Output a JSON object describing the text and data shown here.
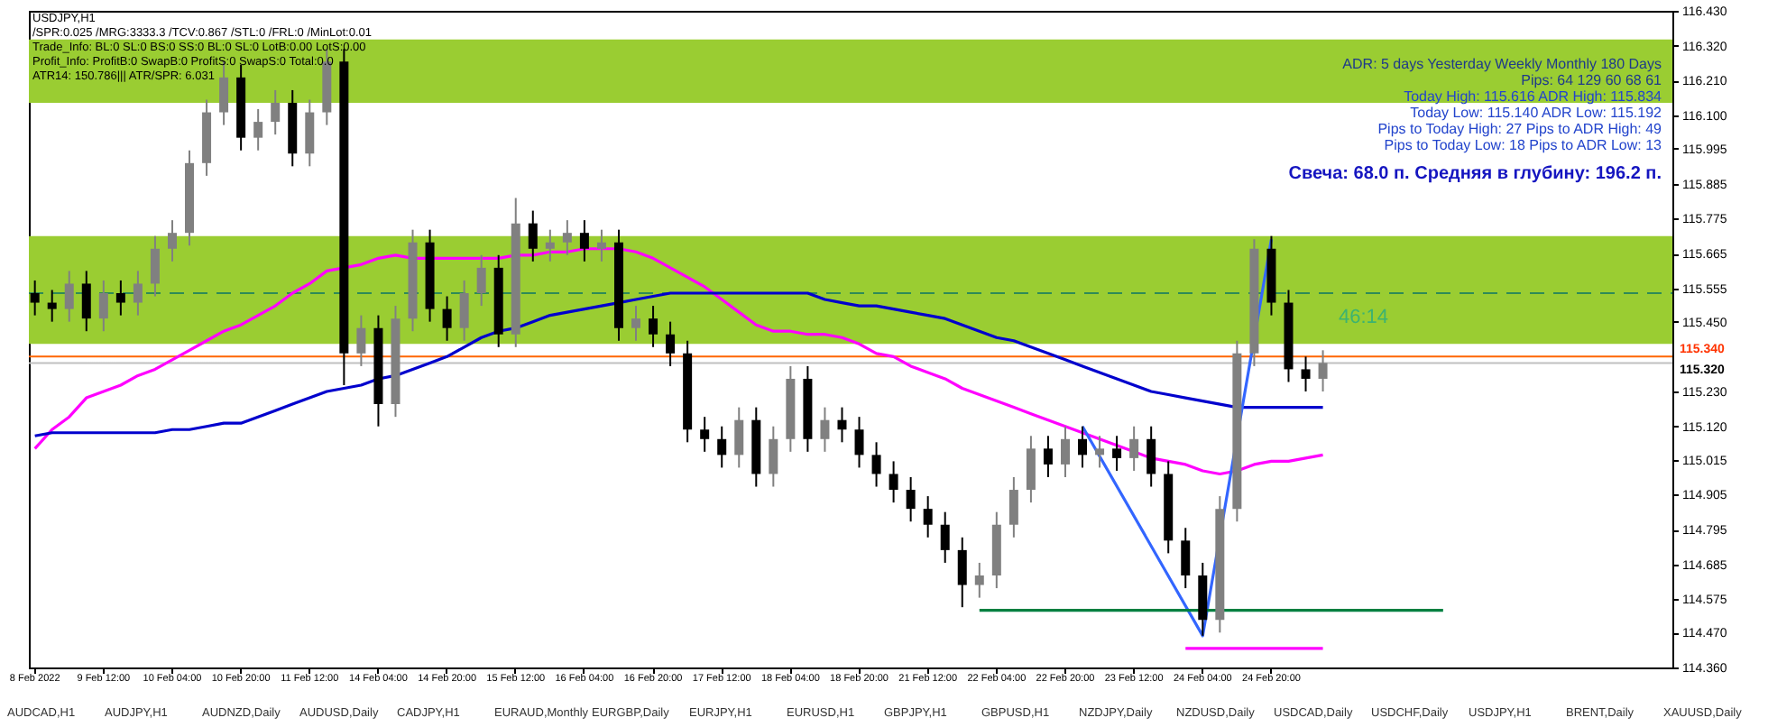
{
  "chart_data": {
    "type": "candlestick",
    "categories": [
      "8 Feb 2022",
      null,
      null,
      null,
      "9 Feb 12:00",
      null,
      null,
      null,
      "10 Feb 04:00",
      null,
      null,
      null,
      "10 Feb 20:00",
      null,
      null,
      null,
      "11 Feb 12:00",
      null,
      null,
      null,
      "14 Feb 04:00",
      null,
      null,
      null,
      "14 Feb 20:00",
      null,
      null,
      null,
      "15 Feb 12:00",
      null,
      null,
      null,
      "16 Feb 04:00",
      null,
      null,
      null,
      "16 Feb 20:00",
      null,
      null,
      null,
      "17 Feb 12:00",
      null,
      null,
      null,
      "18 Feb 04:00",
      null,
      null,
      null,
      "18 Feb 20:00",
      null,
      null,
      null,
      "21 Feb 12:00",
      null,
      null,
      null,
      "22 Feb 04:00",
      null,
      null,
      null,
      "22 Feb 20:00",
      null,
      null,
      null,
      "23 Feb 12:00",
      null,
      null,
      null,
      "24 Feb 04:00",
      null,
      null,
      null,
      "24 Feb 20:00",
      null,
      null,
      null,
      null,
      null,
      null,
      null,
      null,
      null,
      null,
      null,
      null,
      null,
      null,
      null,
      null,
      null,
      null,
      null,
      null,
      null,
      null,
      null
    ],
    "ohlc": [
      [
        115.54,
        115.58,
        115.47,
        115.51
      ],
      [
        115.51,
        115.55,
        115.45,
        115.49
      ],
      [
        115.49,
        115.61,
        115.45,
        115.57
      ],
      [
        115.57,
        115.61,
        115.42,
        115.46
      ],
      [
        115.46,
        115.58,
        115.42,
        115.54
      ],
      [
        115.54,
        115.58,
        115.47,
        115.51
      ],
      [
        115.51,
        115.61,
        115.47,
        115.57
      ],
      [
        115.57,
        115.72,
        115.53,
        115.68
      ],
      [
        115.68,
        115.77,
        115.64,
        115.73
      ],
      [
        115.73,
        115.99,
        115.69,
        115.95
      ],
      [
        115.95,
        116.15,
        115.91,
        116.11
      ],
      [
        116.11,
        116.27,
        116.07,
        116.22
      ],
      [
        116.22,
        116.26,
        115.99,
        116.03
      ],
      [
        116.03,
        116.12,
        115.99,
        116.08
      ],
      [
        116.08,
        116.18,
        116.04,
        116.14
      ],
      [
        116.14,
        116.18,
        115.94,
        115.98
      ],
      [
        115.98,
        116.15,
        115.94,
        116.11
      ],
      [
        116.11,
        116.31,
        116.07,
        116.27
      ],
      [
        116.27,
        116.31,
        115.25,
        115.35
      ],
      [
        115.35,
        115.47,
        115.31,
        115.43
      ],
      [
        115.43,
        115.47,
        115.12,
        115.19
      ],
      [
        115.19,
        115.5,
        115.15,
        115.46
      ],
      [
        115.46,
        115.74,
        115.42,
        115.7
      ],
      [
        115.7,
        115.74,
        115.45,
        115.49
      ],
      [
        115.49,
        115.53,
        115.39,
        115.43
      ],
      [
        115.43,
        115.58,
        115.39,
        115.54
      ],
      [
        115.54,
        115.66,
        115.5,
        115.62
      ],
      [
        115.62,
        115.66,
        115.37,
        115.41
      ],
      [
        115.41,
        115.84,
        115.37,
        115.76
      ],
      [
        115.76,
        115.8,
        115.64,
        115.68
      ],
      [
        115.68,
        115.74,
        115.64,
        115.7
      ],
      [
        115.7,
        115.77,
        115.66,
        115.73
      ],
      [
        115.73,
        115.77,
        115.64,
        115.68
      ],
      [
        115.68,
        115.74,
        115.64,
        115.7
      ],
      [
        115.7,
        115.74,
        115.39,
        115.43
      ],
      [
        115.43,
        115.5,
        115.39,
        115.46
      ],
      [
        115.46,
        115.5,
        115.37,
        115.41
      ],
      [
        115.41,
        115.45,
        115.31,
        115.35
      ],
      [
        115.35,
        115.39,
        115.07,
        115.11
      ],
      [
        115.11,
        115.15,
        115.04,
        115.08
      ],
      [
        115.08,
        115.12,
        114.99,
        115.03
      ],
      [
        115.03,
        115.18,
        114.99,
        115.14
      ],
      [
        115.14,
        115.18,
        114.93,
        114.97
      ],
      [
        114.97,
        115.12,
        114.93,
        115.08
      ],
      [
        115.08,
        115.31,
        115.04,
        115.27
      ],
      [
        115.27,
        115.31,
        115.04,
        115.08
      ],
      [
        115.08,
        115.18,
        115.04,
        115.14
      ],
      [
        115.14,
        115.18,
        115.07,
        115.11
      ],
      [
        115.11,
        115.15,
        114.99,
        115.03
      ],
      [
        115.03,
        115.07,
        114.93,
        114.97
      ],
      [
        114.97,
        115.01,
        114.88,
        114.92
      ],
      [
        114.92,
        114.96,
        114.82,
        114.86
      ],
      [
        114.86,
        114.9,
        114.77,
        114.81
      ],
      [
        114.81,
        114.85,
        114.69,
        114.73
      ],
      [
        114.73,
        114.77,
        114.55,
        114.62
      ],
      [
        114.62,
        114.69,
        114.58,
        114.65
      ],
      [
        114.65,
        114.85,
        114.61,
        114.81
      ],
      [
        114.81,
        114.96,
        114.77,
        114.92
      ],
      [
        114.92,
        115.09,
        114.88,
        115.05
      ],
      [
        115.05,
        115.09,
        114.96,
        115.0
      ],
      [
        115.0,
        115.12,
        114.96,
        115.08
      ],
      [
        115.08,
        115.12,
        114.99,
        115.03
      ],
      [
        115.03,
        115.09,
        114.99,
        115.05
      ],
      [
        115.05,
        115.09,
        114.98,
        115.02
      ],
      [
        115.02,
        115.12,
        114.98,
        115.08
      ],
      [
        115.08,
        115.12,
        114.93,
        114.97
      ],
      [
        114.97,
        115.01,
        114.72,
        114.76
      ],
      [
        114.76,
        114.8,
        114.61,
        114.65
      ],
      [
        114.65,
        114.69,
        114.46,
        114.51
      ],
      [
        114.51,
        114.9,
        114.47,
        114.86
      ],
      [
        114.86,
        115.39,
        114.82,
        115.35
      ],
      [
        115.35,
        115.71,
        115.31,
        115.68
      ],
      [
        115.68,
        115.72,
        115.47,
        115.51
      ],
      [
        115.51,
        115.55,
        115.26,
        115.3
      ],
      [
        115.3,
        115.34,
        115.23,
        115.27
      ],
      [
        115.27,
        115.36,
        115.23,
        115.32
      ],
      null,
      null,
      null,
      null,
      null,
      null,
      null,
      null,
      null,
      null,
      null,
      null,
      null,
      null,
      null,
      null,
      null,
      null,
      null,
      null
    ],
    "series": [
      {
        "type": "line",
        "color": "#ff00ff",
        "values": [
          115.05,
          115.11,
          115.15,
          115.21,
          115.23,
          115.25,
          115.28,
          115.3,
          115.33,
          115.36,
          115.39,
          115.42,
          115.44,
          115.47,
          115.5,
          115.54,
          115.57,
          115.61,
          115.62,
          115.63,
          115.65,
          115.66,
          115.65,
          115.65,
          115.65,
          115.65,
          115.65,
          115.65,
          115.66,
          115.66,
          115.67,
          115.67,
          115.68,
          115.68,
          115.68,
          115.67,
          115.65,
          115.62,
          115.59,
          115.56,
          115.52,
          115.48,
          115.44,
          115.42,
          115.42,
          115.41,
          115.41,
          115.4,
          115.38,
          115.35,
          115.34,
          115.31,
          115.29,
          115.27,
          115.24,
          115.22,
          115.2,
          115.18,
          115.16,
          115.14,
          115.12,
          115.1,
          115.08,
          115.06,
          115.04,
          115.02,
          115.01,
          115.0,
          114.98,
          114.97,
          114.98,
          115.0,
          115.01,
          115.01,
          115.02,
          115.03,
          null,
          null,
          null,
          null,
          null,
          null,
          null,
          null,
          null,
          null,
          null,
          null,
          null,
          null,
          null,
          null,
          null,
          null,
          null,
          null
        ]
      },
      {
        "type": "line",
        "color": "#0000cd",
        "values": [
          115.09,
          115.1,
          115.1,
          115.1,
          115.1,
          115.1,
          115.1,
          115.1,
          115.11,
          115.11,
          115.12,
          115.13,
          115.13,
          115.15,
          115.17,
          115.19,
          115.21,
          115.23,
          115.24,
          115.25,
          115.27,
          115.28,
          115.3,
          115.32,
          115.34,
          115.37,
          115.4,
          115.42,
          115.43,
          115.45,
          115.47,
          115.48,
          115.49,
          115.5,
          115.51,
          115.52,
          115.53,
          115.54,
          115.54,
          115.54,
          115.54,
          115.54,
          115.54,
          115.54,
          115.54,
          115.54,
          115.52,
          115.51,
          115.5,
          115.5,
          115.49,
          115.48,
          115.47,
          115.46,
          115.44,
          115.42,
          115.4,
          115.39,
          115.37,
          115.35,
          115.33,
          115.31,
          115.29,
          115.27,
          115.25,
          115.23,
          115.22,
          115.21,
          115.2,
          115.19,
          115.18,
          115.18,
          115.18,
          115.18,
          115.18,
          115.18,
          null,
          null,
          null,
          null,
          null,
          null,
          null,
          null,
          null,
          null,
          null,
          null,
          null,
          null,
          null,
          null,
          null,
          null,
          null,
          null
        ]
      },
      {
        "type": "line",
        "color": "#3366ff",
        "values": [
          null,
          null,
          null,
          null,
          null,
          null,
          null,
          null,
          null,
          null,
          null,
          null,
          null,
          null,
          null,
          null,
          null,
          null,
          null,
          null,
          null,
          null,
          null,
          null,
          null,
          null,
          null,
          null,
          null,
          null,
          null,
          null,
          null,
          null,
          null,
          null,
          null,
          null,
          null,
          null,
          null,
          null,
          null,
          null,
          null,
          null,
          null,
          null,
          null,
          null,
          null,
          null,
          null,
          null,
          null,
          null,
          null,
          null,
          null,
          null,
          null,
          115.12,
          null,
          null,
          null,
          null,
          null,
          null,
          114.46,
          null,
          null,
          null,
          115.71,
          null,
          null,
          null,
          null,
          null,
          null,
          null,
          null,
          null,
          null,
          null,
          null,
          null,
          null,
          null,
          null,
          null,
          null,
          null,
          null,
          null,
          null,
          null
        ]
      },
      {
        "type": "line",
        "color": "#008040",
        "values": [
          null,
          null,
          null,
          null,
          null,
          null,
          null,
          null,
          null,
          null,
          null,
          null,
          null,
          null,
          null,
          null,
          null,
          null,
          null,
          null,
          null,
          null,
          null,
          null,
          null,
          null,
          null,
          null,
          null,
          null,
          null,
          null,
          null,
          null,
          null,
          null,
          null,
          null,
          null,
          null,
          null,
          null,
          null,
          null,
          null,
          null,
          null,
          null,
          null,
          null,
          null,
          null,
          null,
          null,
          null,
          114.54,
          114.54,
          114.54,
          114.54,
          114.54,
          114.54,
          114.54,
          114.54,
          114.54,
          114.54,
          114.54,
          114.54,
          114.54,
          114.54,
          114.54,
          114.54,
          114.54,
          114.54,
          114.54,
          114.54,
          114.54,
          114.54,
          114.54,
          114.54,
          114.54,
          114.54,
          114.54,
          114.54,
          null,
          null,
          null,
          null,
          null,
          null,
          null,
          null,
          null,
          null,
          null,
          null,
          null
        ]
      },
      {
        "type": "line",
        "color": "#ff00ff",
        "values": [
          null,
          null,
          null,
          null,
          null,
          null,
          null,
          null,
          null,
          null,
          null,
          null,
          null,
          null,
          null,
          null,
          null,
          null,
          null,
          null,
          null,
          null,
          null,
          null,
          null,
          null,
          null,
          null,
          null,
          null,
          null,
          null,
          null,
          null,
          null,
          null,
          null,
          null,
          null,
          null,
          null,
          null,
          null,
          null,
          null,
          null,
          null,
          null,
          null,
          null,
          null,
          null,
          null,
          null,
          null,
          null,
          null,
          null,
          null,
          null,
          null,
          null,
          null,
          null,
          null,
          null,
          null,
          114.42,
          114.42,
          114.42,
          114.42,
          114.42,
          114.42,
          114.42,
          114.42,
          114.42,
          null,
          null,
          null,
          null,
          null,
          null,
          null,
          null,
          null,
          null,
          null,
          null,
          null,
          null,
          null,
          null,
          null,
          null,
          null,
          null
        ]
      }
    ],
    "ylim": [
      114.36,
      116.43
    ],
    "yticks": [
      {
        "value": 116.43,
        "label": "116.430"
      },
      {
        "value": 116.32,
        "label": "116.320"
      },
      {
        "value": 116.21,
        "label": "116.210"
      },
      {
        "value": 116.1,
        "label": "116.100"
      },
      {
        "value": 115.995,
        "label": "115.995"
      },
      {
        "value": 115.885,
        "label": "115.885"
      },
      {
        "value": 115.775,
        "label": "115.775"
      },
      {
        "value": 115.665,
        "label": "115.665"
      },
      {
        "value": 115.555,
        "label": "115.555"
      },
      {
        "value": 115.45,
        "label": "115.450"
      },
      {
        "value": 115.23,
        "label": "115.230"
      },
      {
        "value": 115.12,
        "label": "115.120"
      },
      {
        "value": 115.015,
        "label": "115.015"
      },
      {
        "value": 114.905,
        "label": "114.905"
      },
      {
        "value": 114.795,
        "label": "114.795"
      },
      {
        "value": 114.685,
        "label": "114.685"
      },
      {
        "value": 114.575,
        "label": "114.575"
      },
      {
        "value": 114.47,
        "label": "114.470"
      },
      {
        "value": 114.36,
        "label": "114.360"
      }
    ],
    "bands": [
      {
        "axis": "y",
        "from": 116.14,
        "to": 116.34,
        "color": "#9acd32"
      },
      {
        "axis": "y",
        "from": 115.38,
        "to": 115.72,
        "color": "#9acd32"
      }
    ],
    "ref_lines": [
      {
        "axis": "y",
        "value": 115.54,
        "color": "#2e8b57",
        "line_style": "dashed"
      },
      {
        "axis": "y",
        "value": 115.34,
        "color": "#ff6600",
        "label": "115.340"
      },
      {
        "axis": "y",
        "value": 115.32,
        "color": "#c0c0c0",
        "label": "115.320"
      }
    ],
    "annotations": [
      "USDJPY,H1",
      "/SPR:0.025 /MRG:3333.3 /TCV:0.867 /STL:0 /FRL:0 /MinLot:0.01",
      "Trade_Info: BL:0 SL:0 BS:0 SS:0 BL:0 SL:0 LotB:0.00 LotS:0.00",
      "Profit_Info: ProfitB:0 SwapB:0 ProfitS:0 SwapS:0 Total:0.0",
      "ATR14: 150.786||| ATR/SPR: 6.031",
      "ADR:   5 days   Yesterday   Weekly   Monthly   180 Days",
      "Pips:   64   129   60   68   61",
      "Today High:   115.616   ADR High:   115.834",
      "Today Low:   115.140   ADR Low:   115.192",
      "Pips to Today High:   27   Pips to ADR High:   49",
      "Pips to Today Low:   18   Pips to ADR Low:   13",
      "Свеча: 68.0 п. Средняя в глубину: 196.2 п.",
      "46:14",
      "AUDCAD,H1",
      "AUDJPY,H1",
      "AUDNZD,Daily",
      "AUDUSD,Daily",
      "CADJPY,H1",
      "EURAUD,Monthly",
      "EURGBP,Daily",
      "EURJPY,H1",
      "EURUSD,H1",
      "GBPJPY,H1",
      "GBPUSD,H1",
      "NZDJPY,Daily",
      "NZDUSD,Daily",
      "USDCAD,Daily",
      "USDCHF,Daily",
      "USDJPY,H1",
      "BRENT,Daily",
      "XAUUSD,Daily"
    ]
  }
}
